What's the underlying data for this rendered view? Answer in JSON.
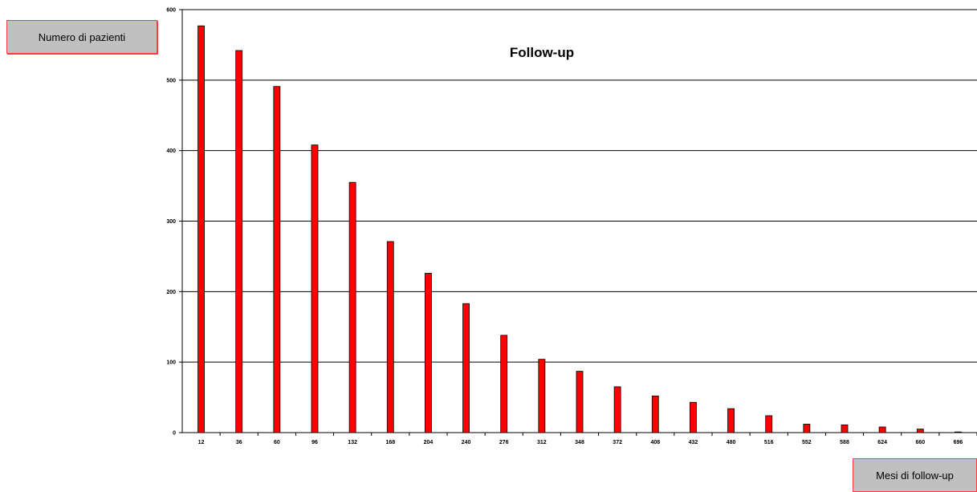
{
  "chart_data": {
    "type": "bar",
    "title": "Follow-up",
    "ylabel": "Numero di pazienti",
    "xlabel": "Mesi di follow-up",
    "categories": [
      "12",
      "36",
      "60",
      "96",
      "132",
      "168",
      "204",
      "240",
      "276",
      "312",
      "348",
      "372",
      "408",
      "432",
      "480",
      "516",
      "552",
      "588",
      "624",
      "660",
      "696"
    ],
    "values": [
      577,
      542,
      491,
      408,
      355,
      271,
      226,
      183,
      138,
      104,
      87,
      65,
      52,
      43,
      34,
      24,
      12,
      11,
      8,
      5,
      1
    ],
    "ylim": [
      0,
      600
    ],
    "yticks": [
      "0",
      "100",
      "200",
      "300",
      "400",
      "500",
      "600"
    ],
    "grid": true,
    "bar_color": "#ff0000",
    "bar_edge_color": "#000000"
  }
}
